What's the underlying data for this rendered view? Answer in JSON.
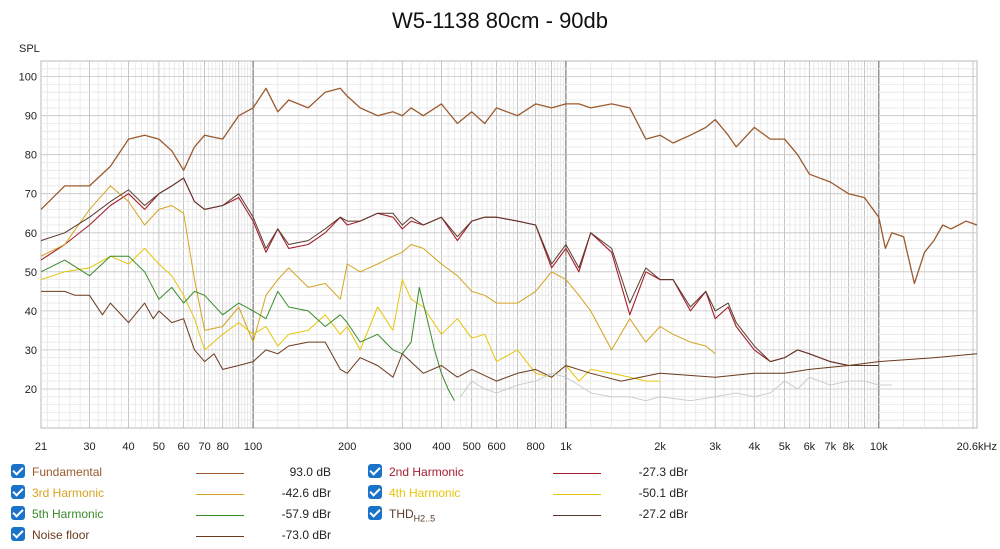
{
  "title": "W5-1138 80cm - 90db",
  "chart_data": {
    "type": "line",
    "title": "W5-1138 80cm - 90db",
    "ylabel": "SPL",
    "xscale": "log",
    "xlim": [
      21,
      20600
    ],
    "ylim": [
      10,
      104
    ],
    "grid": true,
    "x_tick_labels": [
      {
        "v": 21,
        "t": "21"
      },
      {
        "v": 30,
        "t": "30"
      },
      {
        "v": 40,
        "t": "40"
      },
      {
        "v": 50,
        "t": "50"
      },
      {
        "v": 60,
        "t": "60"
      },
      {
        "v": 70,
        "t": "70"
      },
      {
        "v": 80,
        "t": "80"
      },
      {
        "v": 100,
        "t": "100"
      },
      {
        "v": 200,
        "t": "200"
      },
      {
        "v": 300,
        "t": "300"
      },
      {
        "v": 400,
        "t": "400"
      },
      {
        "v": 500,
        "t": "500"
      },
      {
        "v": 600,
        "t": "600"
      },
      {
        "v": 800,
        "t": "800"
      },
      {
        "v": 1000,
        "t": "1k"
      },
      {
        "v": 2000,
        "t": "2k"
      },
      {
        "v": 3000,
        "t": "3k"
      },
      {
        "v": 4000,
        "t": "4k"
      },
      {
        "v": 5000,
        "t": "5k"
      },
      {
        "v": 6000,
        "t": "6k"
      },
      {
        "v": 7000,
        "t": "7k"
      },
      {
        "v": 8000,
        "t": "8k"
      },
      {
        "v": 10000,
        "t": "10k"
      },
      {
        "v": 20600,
        "t": "20.6kHz"
      }
    ],
    "y_tick_labels": [
      "20",
      "30",
      "40",
      "50",
      "60",
      "70",
      "80",
      "90",
      "100"
    ],
    "series": [
      {
        "id": "fund",
        "name": "Fundamental",
        "color": "#9a5a2e",
        "width": 1.3,
        "x": [
          21,
          25,
          30,
          35,
          40,
          45,
          50,
          55,
          60,
          65,
          70,
          80,
          90,
          100,
          110,
          120,
          130,
          150,
          170,
          190,
          200,
          220,
          250,
          280,
          300,
          320,
          350,
          400,
          450,
          500,
          550,
          600,
          700,
          800,
          900,
          1000,
          1100,
          1200,
          1400,
          1600,
          1800,
          2000,
          2200,
          2500,
          2800,
          3000,
          3300,
          3500,
          4000,
          4500,
          5000,
          5500,
          6000,
          7000,
          8000,
          9000,
          10000,
          10500,
          11000,
          12000,
          13000,
          14000,
          15000,
          16000,
          17000,
          18000,
          19000,
          20600
        ],
        "y": [
          66,
          72,
          72,
          77,
          84,
          85,
          84,
          81,
          76,
          82,
          85,
          84,
          90,
          92,
          97,
          91,
          94,
          92,
          96,
          97,
          95,
          92,
          90,
          91,
          90,
          92,
          90,
          93,
          88,
          91,
          88,
          92,
          90,
          93,
          92,
          93,
          93,
          92,
          93,
          92,
          84,
          85,
          83,
          85,
          87,
          89,
          85,
          82,
          87,
          84,
          84,
          80,
          75,
          73,
          70,
          69,
          64,
          56,
          60,
          59,
          47,
          55,
          58,
          62,
          61,
          62,
          63,
          62
        ]
      },
      {
        "id": "h2",
        "name": "2nd Harmonic",
        "color": "#a51d2d",
        "width": 1.1,
        "x": [
          21,
          25,
          30,
          35,
          40,
          45,
          50,
          55,
          60,
          65,
          70,
          80,
          90,
          100,
          110,
          120,
          130,
          150,
          170,
          190,
          200,
          220,
          250,
          280,
          300,
          320,
          350,
          400,
          450,
          500,
          550,
          600,
          700,
          800,
          900,
          1000,
          1100,
          1200,
          1400,
          1600,
          1800,
          2000,
          2200,
          2500,
          2800,
          3000,
          3300,
          3500,
          4000,
          4500,
          5000,
          5500,
          6000,
          7000,
          8000,
          9000,
          10000
        ],
        "y": [
          53,
          57,
          62,
          67,
          70,
          66,
          70,
          72,
          74,
          68,
          66,
          67,
          69,
          63,
          55,
          61,
          56,
          57,
          60,
          64,
          62,
          63,
          65,
          64,
          61,
          63,
          62,
          64,
          58,
          63,
          64,
          64,
          63,
          62,
          51,
          56,
          50,
          60,
          55,
          39,
          50,
          48,
          48,
          40,
          45,
          38,
          41,
          36,
          30,
          27,
          28,
          30,
          29,
          27,
          26,
          26,
          26
        ]
      },
      {
        "id": "h3",
        "name": "3rd Harmonic",
        "color": "#d4a320",
        "width": 1.0,
        "x": [
          21,
          25,
          30,
          35,
          40,
          45,
          50,
          55,
          60,
          65,
          70,
          80,
          90,
          100,
          110,
          120,
          130,
          150,
          170,
          190,
          200,
          220,
          250,
          280,
          300,
          320,
          350,
          400,
          450,
          500,
          550,
          600,
          700,
          800,
          900,
          1000,
          1100,
          1200,
          1400,
          1600,
          1800,
          2000,
          2200,
          2500,
          2800,
          3000
        ],
        "y": [
          54,
          57,
          66,
          72,
          68,
          62,
          66,
          67,
          65,
          48,
          35,
          36,
          41,
          32,
          44,
          48,
          51,
          46,
          47,
          43,
          52,
          50,
          52,
          54,
          55,
          57,
          56,
          52,
          49,
          45,
          44,
          42,
          42,
          45,
          50,
          48,
          44,
          40,
          30,
          38,
          32,
          36,
          34,
          32,
          31,
          29
        ]
      },
      {
        "id": "h4",
        "name": "4th Harmonic",
        "color": "#e6c60a",
        "width": 1.0,
        "x": [
          21,
          25,
          30,
          35,
          40,
          45,
          50,
          55,
          60,
          65,
          70,
          80,
          90,
          100,
          110,
          120,
          130,
          150,
          170,
          190,
          200,
          220,
          250,
          280,
          300,
          320,
          350,
          400,
          450,
          500,
          550,
          600,
          700,
          800,
          900,
          1000,
          1100,
          1200,
          1400,
          1600,
          1800,
          2000
        ],
        "y": [
          48,
          50,
          51,
          54,
          52,
          56,
          52,
          49,
          44,
          38,
          30,
          34,
          37,
          34,
          36,
          31,
          34,
          35,
          39,
          34,
          36,
          30,
          41,
          35,
          48,
          43,
          41,
          34,
          38,
          33,
          34,
          27,
          30,
          24,
          23,
          26,
          22,
          25,
          24,
          23,
          22,
          22
        ]
      },
      {
        "id": "h5",
        "name": "5th Harmonic",
        "color": "#3a8a2a",
        "width": 1.0,
        "x": [
          21,
          25,
          30,
          35,
          40,
          45,
          50,
          55,
          60,
          65,
          70,
          80,
          90,
          100,
          110,
          120,
          130,
          150,
          170,
          190,
          200,
          220,
          250,
          280,
          300,
          320,
          340,
          360,
          380,
          400,
          420,
          440
        ],
        "y": [
          50,
          53,
          49,
          54,
          54,
          50,
          43,
          46,
          42,
          45,
          44,
          39,
          42,
          40,
          38,
          45,
          41,
          40,
          36,
          39,
          37,
          32,
          34,
          30,
          29,
          32,
          46,
          38,
          30,
          24,
          20,
          17
        ]
      },
      {
        "id": "thd",
        "name": "THD",
        "color": "#5a3a2a",
        "width": 1.0,
        "x": [
          21,
          25,
          30,
          35,
          40,
          45,
          50,
          55,
          60,
          65,
          70,
          80,
          90,
          100,
          110,
          120,
          130,
          150,
          170,
          190,
          200,
          220,
          250,
          280,
          300,
          320,
          350,
          400,
          450,
          500,
          550,
          600,
          700,
          800,
          900,
          1000,
          1100,
          1200,
          1400,
          1600,
          1800,
          2000,
          2200,
          2500,
          2800,
          3000,
          3300,
          3500,
          4000,
          4500,
          5000,
          5500,
          6000,
          7000,
          8000,
          9000,
          10000
        ],
        "y": [
          58,
          60,
          64,
          68,
          71,
          67,
          70,
          72,
          74,
          68,
          66,
          67,
          70,
          64,
          56,
          61,
          57,
          58,
          61,
          64,
          63,
          63,
          65,
          65,
          62,
          64,
          62,
          64,
          59,
          63,
          64,
          64,
          63,
          62,
          52,
          57,
          51,
          60,
          56,
          42,
          51,
          48,
          48,
          41,
          45,
          40,
          42,
          37,
          31,
          27,
          28,
          30,
          29,
          27,
          26,
          26,
          26
        ]
      },
      {
        "id": "noise",
        "name": "Noise floor",
        "color": "#6b3a1f",
        "width": 1.0,
        "x": [
          21,
          25,
          27,
          30,
          33,
          35,
          40,
          45,
          48,
          50,
          55,
          60,
          65,
          70,
          75,
          80,
          90,
          100,
          110,
          120,
          130,
          150,
          170,
          190,
          200,
          220,
          250,
          280,
          300,
          350,
          400,
          450,
          500,
          600,
          700,
          800,
          900,
          1000,
          1200,
          1500,
          2000,
          3000,
          4000,
          5000,
          6000,
          8000,
          10000,
          15000,
          20600
        ],
        "y": [
          45,
          45,
          44,
          44,
          39,
          42,
          37,
          42,
          38,
          40,
          37,
          38,
          30,
          27,
          29,
          25,
          26,
          27,
          30,
          29,
          31,
          32,
          32,
          25,
          24,
          28,
          26,
          23,
          29,
          24,
          26,
          23,
          25,
          22,
          24,
          25,
          23,
          26,
          24,
          22,
          24,
          23,
          24,
          24,
          25,
          26,
          27,
          28,
          29
        ]
      },
      {
        "id": "gray",
        "name": "",
        "color": "#c8c8c8",
        "width": 0.9,
        "x": [
          460,
          500,
          550,
          600,
          700,
          800,
          900,
          1000,
          1100,
          1200,
          1400,
          1600,
          1800,
          2000,
          2500,
          3000,
          3500,
          4000,
          4500,
          5000,
          5500,
          6000,
          7000,
          8000,
          9000,
          10000,
          11000
        ],
        "y": [
          18,
          22,
          20,
          19,
          21,
          22,
          24,
          23,
          21,
          19,
          18,
          18,
          17,
          18,
          17,
          18,
          19,
          18,
          19,
          22,
          20,
          23,
          21,
          22,
          22,
          21,
          21
        ]
      }
    ]
  },
  "legend": [
    {
      "label": "Fundamental",
      "value": "93.0 dB",
      "color": "#9a5a2e",
      "col": 0,
      "row": 0
    },
    {
      "label": "3rd Harmonic",
      "value": "-42.6 dBr",
      "color": "#d4a320",
      "col": 0,
      "row": 1
    },
    {
      "label": "5th Harmonic",
      "value": "-57.9 dBr",
      "color": "#3a8a2a",
      "col": 0,
      "row": 2
    },
    {
      "label": "Noise floor",
      "value": "-73.0 dBr",
      "color": "#6b3a1f",
      "col": 0,
      "row": 3
    },
    {
      "label": "2nd Harmonic",
      "value": "-27.3 dBr",
      "color": "#a51d2d",
      "col": 1,
      "row": 0
    },
    {
      "label": "4th Harmonic",
      "value": "-50.1 dBr",
      "color": "#e6c60a",
      "col": 1,
      "row": 1
    },
    {
      "label": "THD",
      "sub": "H2..5",
      "value": "-27.2 dBr",
      "color": "#5a3a2a",
      "col": 1,
      "row": 2
    }
  ]
}
